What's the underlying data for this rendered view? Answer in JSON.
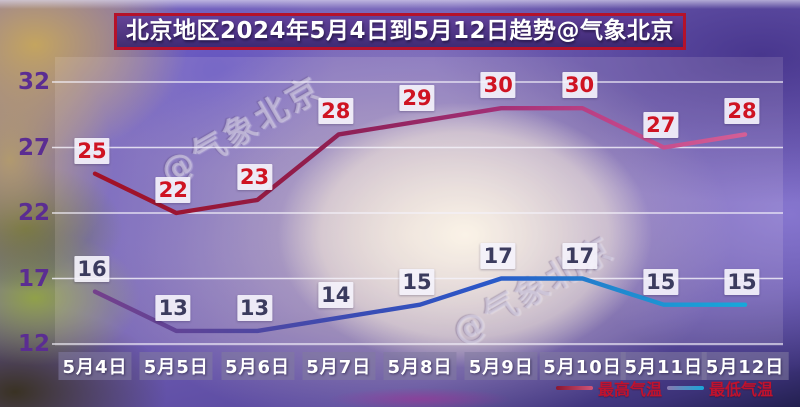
{
  "title": "北京地区2024年5月4日到5月12日趋势@气象北京",
  "watermark_text": "@气象北京",
  "legend": {
    "high_label": "最高气温",
    "low_label": "最低气温"
  },
  "colors": {
    "high_line_stops": [
      "#a31126",
      "#96183a",
      "#8f2158",
      "#a02e74",
      "#c04488",
      "#d45f96"
    ],
    "low_line_stops": [
      "#74408c",
      "#55459c",
      "#3a4cb4",
      "#2b57c8",
      "#2088cf",
      "#17a8da"
    ],
    "high_value_text": "#cf1322",
    "low_value_text": "#3b3b5e",
    "y_tick_text": "#5b2d92",
    "x_tick_text": "#ffffff",
    "gridline": "#f4f1fa",
    "title_border": "#b5122a",
    "legend_text": "#c0122d"
  },
  "chart_data": {
    "type": "line",
    "title": "北京地区2024年5月4日到5月12日趋势@气象北京",
    "x": [
      "5月4日",
      "5月5日",
      "5月6日",
      "5月7日",
      "5月8日",
      "5月9日",
      "5月10日",
      "5月11日",
      "5月12日"
    ],
    "series": [
      {
        "name": "最高气温",
        "values": [
          25,
          22,
          23,
          28,
          29,
          30,
          30,
          27,
          28
        ]
      },
      {
        "name": "最低气温",
        "values": [
          16,
          13,
          13,
          14,
          15,
          17,
          17,
          15,
          15
        ]
      }
    ],
    "yticks": [
      32,
      27,
      22,
      17,
      12
    ],
    "ylim": [
      12,
      34
    ],
    "xlabel": "",
    "ylabel": "",
    "grid": "horizontal",
    "legend_position": "bottom-right",
    "data_labels": true
  }
}
